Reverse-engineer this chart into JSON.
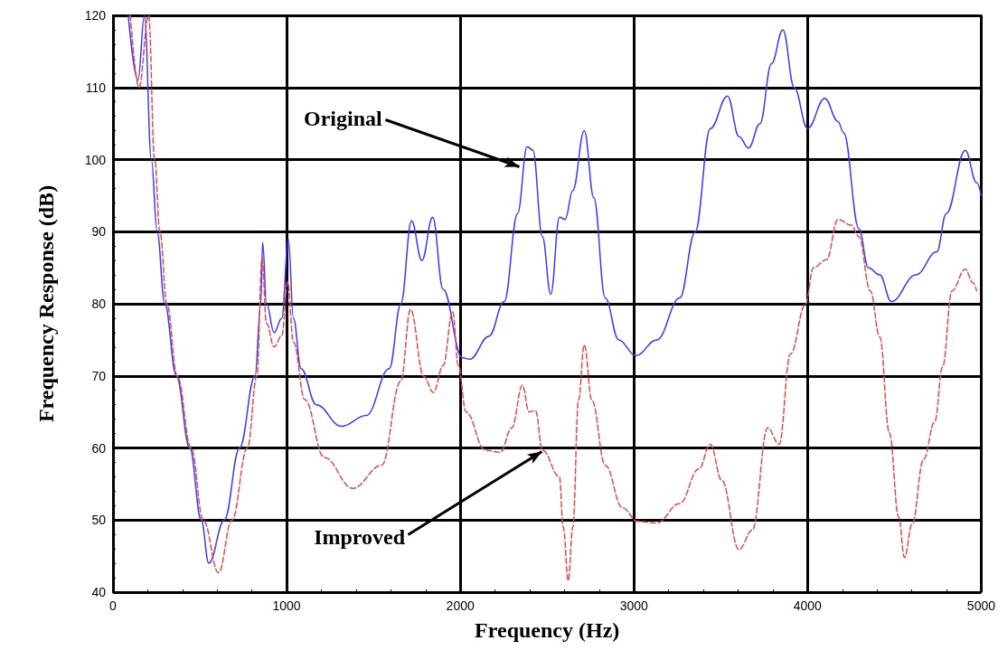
{
  "chart_data": {
    "type": "line",
    "xlabel": "Frequency (Hz)",
    "ylabel": "Frequency Response (dB)",
    "xlim": [
      0,
      5000
    ],
    "xticks": [
      0,
      1000,
      2000,
      3000,
      4000,
      5000
    ],
    "ylim": [
      40,
      120
    ],
    "yticks": [
      40,
      50,
      60,
      70,
      80,
      90,
      100,
      110,
      120
    ],
    "grid": true,
    "marker": "none",
    "series": [
      {
        "color": "#3a3aff",
        "line_style": "solid",
        "x": [
          88,
          144,
          181,
          221,
          254,
          298,
          365,
          442,
          508,
          552,
          641,
          729,
          818,
          851,
          862,
          884,
          928,
          972,
          1010,
          1039,
          1083,
          1171,
          1315,
          1459,
          1591,
          1658,
          1719,
          1779,
          1841,
          1901,
          2011,
          2055,
          2165,
          2253,
          2330,
          2385,
          2418,
          2473,
          2521,
          2571,
          2604,
          2648,
          2714,
          2769,
          2835,
          2912,
          3011,
          3132,
          3264,
          3352,
          3440,
          3539,
          3605,
          3660,
          3726,
          3792,
          3858,
          3923,
          4000,
          4099,
          4175,
          4208,
          4296,
          4350,
          4416,
          4482,
          4624,
          4744,
          4799,
          4908,
          4974,
          5000
        ],
        "values": [
          120,
          111,
          120,
          100,
          90,
          80,
          70,
          60,
          50,
          44,
          50,
          60,
          70,
          80,
          88.5,
          80,
          76,
          78,
          89,
          78,
          71,
          66,
          63,
          64.5,
          71,
          80,
          91.5,
          86,
          92,
          82,
          72.5,
          72.3,
          75.5,
          80.3,
          92.5,
          101.8,
          101.3,
          89.3,
          81.3,
          92,
          91.7,
          95.7,
          104,
          94.7,
          80.8,
          75,
          72.8,
          75,
          80.8,
          89.9,
          104.3,
          108.8,
          103.2,
          101.6,
          105,
          113.3,
          118,
          110,
          104.3,
          108.5,
          105.3,
          103.7,
          90.4,
          85,
          84,
          80.3,
          84,
          87.2,
          92.5,
          101.3,
          96.8,
          95
        ]
      },
      {
        "color": "#e84848",
        "line_style": "dashed",
        "x": [
          100,
          150,
          205,
          240,
          270,
          310,
          370,
          450,
          520,
          608,
          685,
          774,
          829,
          858,
          884,
          928,
          972,
          1006,
          1039,
          1105,
          1216,
          1381,
          1547,
          1658,
          1713,
          1790,
          1845,
          1901,
          1956,
          1989,
          2033,
          2143,
          2231,
          2297,
          2358,
          2396,
          2433,
          2473,
          2571,
          2593,
          2622,
          2648,
          2681,
          2714,
          2758,
          2835,
          2934,
          3022,
          3132,
          3264,
          3374,
          3440,
          3506,
          3605,
          3682,
          3770,
          3836,
          3901,
          3989,
          4033,
          4109,
          4175,
          4252,
          4296,
          4361,
          4416,
          4471,
          4525,
          4558,
          4602,
          4668,
          4733,
          4777,
          4832,
          4908,
          4952,
          4974
        ],
        "values": [
          120,
          110,
          120,
          100,
          90,
          80,
          70,
          60,
          50,
          42.7,
          50,
          60,
          70,
          86.3,
          77.3,
          74,
          75.6,
          83,
          74.7,
          66.7,
          58.7,
          54.4,
          57.6,
          69.3,
          79.2,
          69.9,
          67.7,
          71.4,
          78.9,
          71.4,
          65,
          59.7,
          59.4,
          62.8,
          68.7,
          65,
          65.2,
          59.7,
          56,
          49,
          41.6,
          49,
          66.6,
          74.3,
          66.6,
          57.6,
          51.7,
          49.8,
          49.6,
          52.3,
          57.1,
          60.5,
          55.5,
          45.9,
          48.6,
          62.8,
          60.5,
          73,
          80,
          85,
          86.1,
          91.7,
          90.9,
          89.3,
          81.8,
          75.4,
          62.1,
          50.4,
          44.8,
          49.4,
          58.4,
          63.7,
          71.2,
          81.8,
          84.8,
          82.9,
          81.8
        ]
      }
    ],
    "annotations": [
      {
        "text": "Original",
        "x": 2340,
        "y": 99
      },
      {
        "text": "Improved",
        "x": 2470,
        "y": 59.5
      }
    ]
  }
}
